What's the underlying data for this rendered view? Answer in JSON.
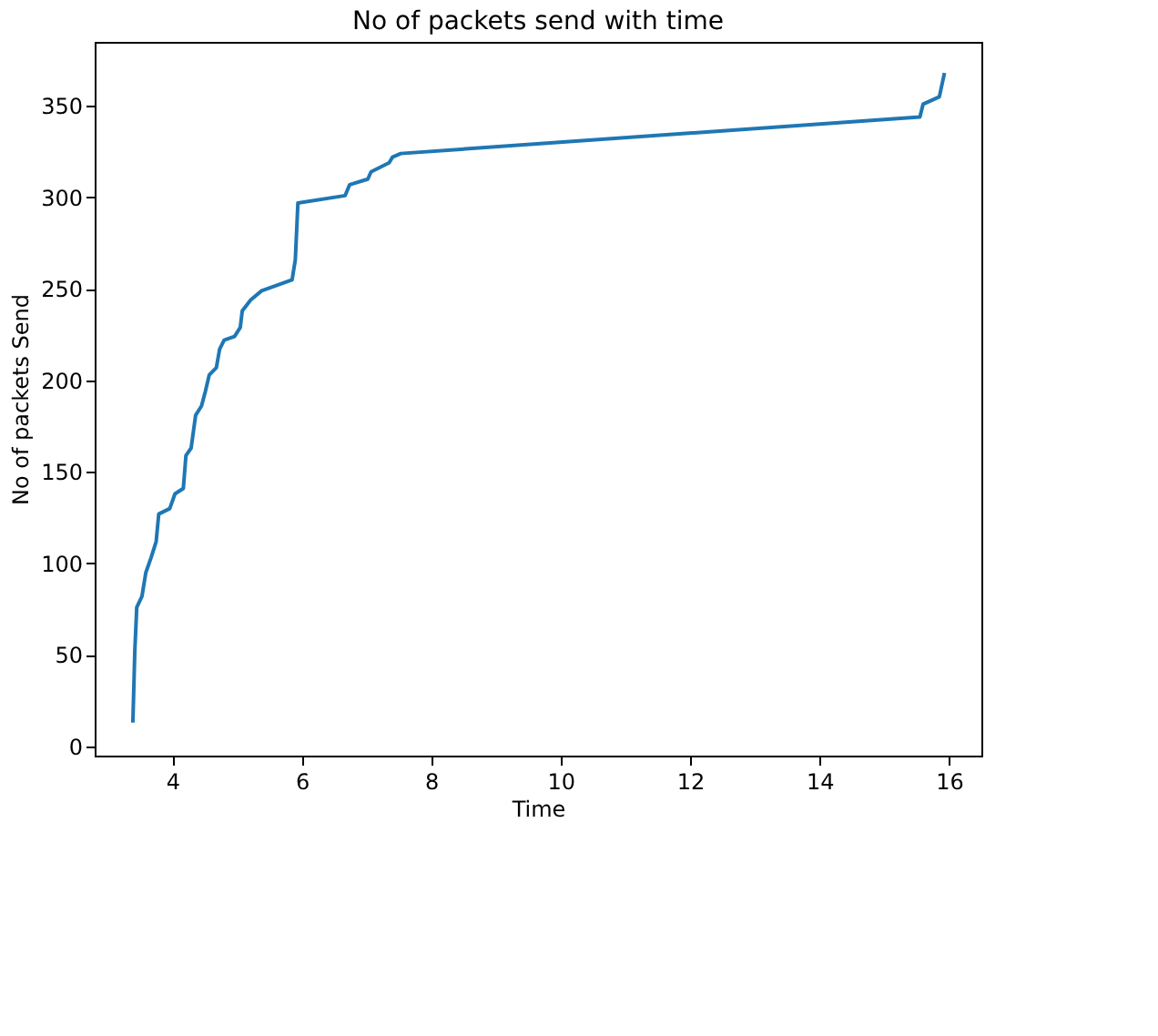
{
  "chart_data": {
    "type": "line",
    "title": "No of packets send with time",
    "xlabel": "Time",
    "ylabel": "No of packets Send",
    "x": [
      3.39,
      3.42,
      3.45,
      3.53,
      3.59,
      3.67,
      3.75,
      3.79,
      3.96,
      4.04,
      4.17,
      4.21,
      4.29,
      4.36,
      4.45,
      4.51,
      4.57,
      4.68,
      4.73,
      4.8,
      4.96,
      5.05,
      5.08,
      5.21,
      5.38,
      5.85,
      5.9,
      5.94,
      6.67,
      6.74,
      7.02,
      7.07,
      7.35,
      7.4,
      7.53,
      15.55,
      15.6,
      15.85,
      15.93
    ],
    "series": [
      {
        "color": "#1f77b4",
        "values": [
          13,
          52,
          76,
          82,
          95,
          103,
          112,
          127,
          130,
          138,
          141,
          159,
          163,
          181,
          186,
          194,
          203,
          207,
          217,
          222,
          224,
          229,
          238,
          244,
          249,
          255,
          266,
          297,
          301,
          307,
          310,
          314,
          319,
          322,
          324,
          344,
          351,
          355,
          368
        ]
      }
    ],
    "xlim": [
      2.8,
      16.5
    ],
    "ylim": [
      -5,
      385
    ],
    "xticks": [
      4,
      6,
      8,
      10,
      12,
      14,
      16
    ],
    "yticks": [
      0,
      50,
      100,
      150,
      200,
      250,
      300,
      350
    ],
    "grid": false,
    "legend": false,
    "marker": "none",
    "line_style": "solid"
  }
}
